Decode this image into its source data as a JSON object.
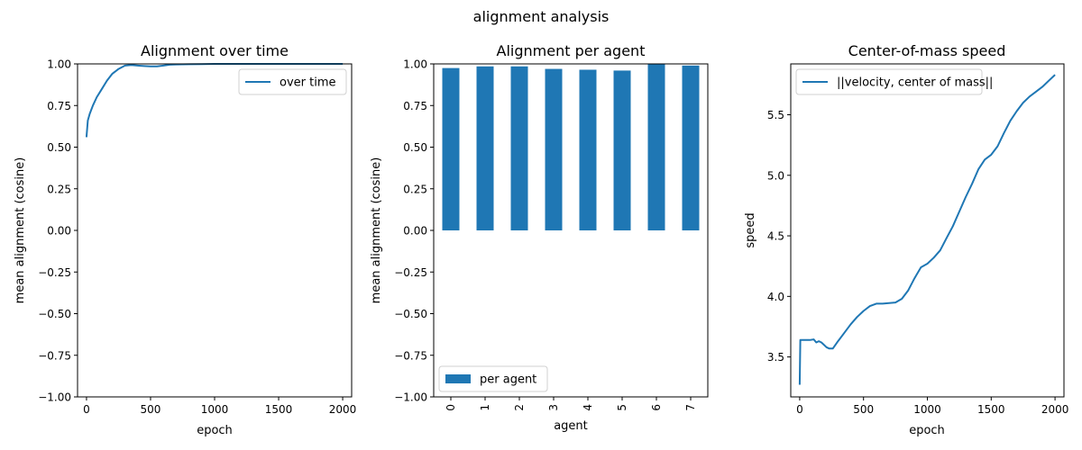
{
  "suptitle": "alignment analysis",
  "colors": {
    "series": "#1f77b4"
  },
  "chart_data": [
    {
      "type": "line",
      "title": "Alignment over time",
      "xlabel": "epoch",
      "ylabel": "mean alignment (cosine)",
      "xlim": [
        -70,
        2070
      ],
      "ylim": [
        -1.0,
        1.0
      ],
      "xticks": [
        0,
        500,
        1000,
        1500,
        2000
      ],
      "xtick_labels": [
        "0",
        "500",
        "1000",
        "1500",
        "2000"
      ],
      "yticks": [
        -1.0,
        -0.75,
        -0.5,
        -0.25,
        0.0,
        0.25,
        0.5,
        0.75,
        1.0
      ],
      "ytick_labels": [
        "−1.00",
        "−0.75",
        "−0.50",
        "−0.25",
        "0.00",
        "0.25",
        "0.50",
        "0.75",
        "1.00"
      ],
      "legend": {
        "placement": "upper right"
      },
      "series": [
        {
          "name": "over time",
          "x": [
            0,
            10,
            25,
            50,
            80,
            120,
            160,
            200,
            250,
            300,
            350,
            400,
            450,
            500,
            550,
            600,
            650,
            700,
            800,
            900,
            1000,
            1200,
            1400,
            1600,
            1800,
            2000
          ],
          "y": [
            0.56,
            0.66,
            0.7,
            0.75,
            0.8,
            0.85,
            0.9,
            0.94,
            0.97,
            0.99,
            0.993,
            0.99,
            0.987,
            0.985,
            0.985,
            0.99,
            0.995,
            0.997,
            0.998,
            0.999,
            1.0,
            1.0,
            1.0,
            1.0,
            1.0,
            1.0
          ]
        }
      ]
    },
    {
      "type": "bar",
      "title": "Alignment per agent",
      "xlabel": "agent",
      "ylabel": "mean alignment (cosine)",
      "ylim": [
        -1.0,
        1.0
      ],
      "categories": [
        "0",
        "1",
        "2",
        "3",
        "4",
        "5",
        "6",
        "7"
      ],
      "yticks": [
        -1.0,
        -0.75,
        -0.5,
        -0.25,
        0.0,
        0.25,
        0.5,
        0.75,
        1.0
      ],
      "ytick_labels": [
        "−1.00",
        "−0.75",
        "−0.50",
        "−0.25",
        "0.00",
        "0.25",
        "0.50",
        "0.75",
        "1.00"
      ],
      "legend": {
        "placement": "lower left"
      },
      "series": [
        {
          "name": "per agent",
          "values": [
            0.975,
            0.985,
            0.985,
            0.97,
            0.965,
            0.96,
            1.0,
            0.99
          ]
        }
      ]
    },
    {
      "type": "line",
      "title": "Center-of-mass speed",
      "xlabel": "epoch",
      "ylabel": "speed",
      "xlim": [
        -70,
        2070
      ],
      "ylim": [
        3.17,
        5.92
      ],
      "xticks": [
        0,
        500,
        1000,
        1500,
        2000
      ],
      "xtick_labels": [
        "0",
        "500",
        "1000",
        "1500",
        "2000"
      ],
      "yticks": [
        3.5,
        4.0,
        4.5,
        5.0,
        5.5
      ],
      "ytick_labels": [
        "3.5",
        "4.0",
        "4.5",
        "5.0",
        "5.5"
      ],
      "legend": {
        "placement": "upper left"
      },
      "series": [
        {
          "name": "||velocity, center of mass||",
          "x": [
            0,
            5,
            20,
            50,
            80,
            110,
            130,
            150,
            170,
            190,
            210,
            230,
            260,
            300,
            350,
            400,
            450,
            500,
            550,
            600,
            650,
            700,
            750,
            800,
            850,
            900,
            950,
            1000,
            1050,
            1100,
            1150,
            1200,
            1250,
            1300,
            1350,
            1400,
            1450,
            1500,
            1550,
            1600,
            1650,
            1700,
            1750,
            1800,
            1850,
            1900,
            1950,
            2000
          ],
          "y": [
            3.27,
            3.64,
            3.64,
            3.64,
            3.64,
            3.645,
            3.62,
            3.63,
            3.62,
            3.6,
            3.58,
            3.57,
            3.57,
            3.63,
            3.7,
            3.77,
            3.83,
            3.88,
            3.92,
            3.94,
            3.94,
            3.945,
            3.95,
            3.98,
            4.05,
            4.15,
            4.24,
            4.27,
            4.32,
            4.38,
            4.48,
            4.58,
            4.7,
            4.82,
            4.93,
            5.05,
            5.13,
            5.17,
            5.24,
            5.35,
            5.45,
            5.53,
            5.6,
            5.65,
            5.69,
            5.73,
            5.78,
            5.83
          ]
        }
      ]
    }
  ]
}
